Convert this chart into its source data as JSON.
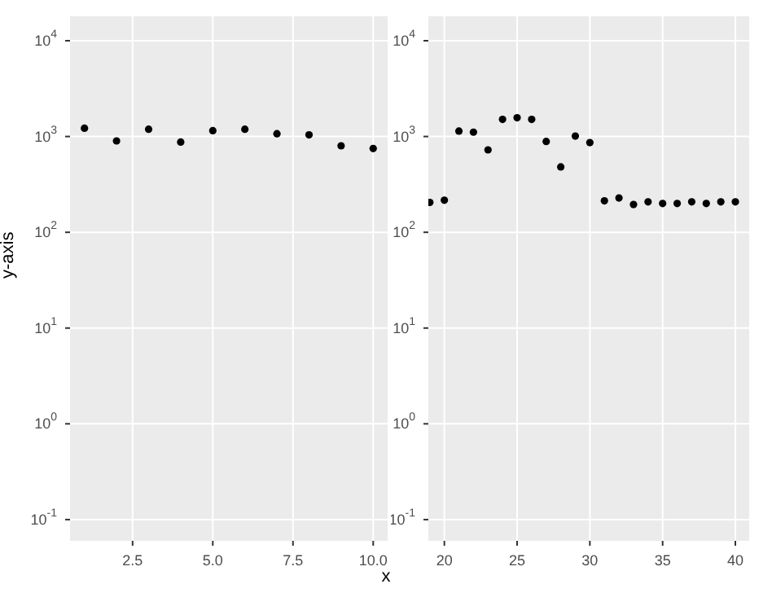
{
  "chart_data": [
    {
      "type": "scatter",
      "ylabel": "y-axis",
      "log": "y",
      "grid": true,
      "marker": "circle",
      "x": [
        1,
        2,
        3,
        4,
        5,
        6,
        7,
        8,
        9,
        10
      ],
      "series": [
        {
          "color": "#000000",
          "values": [
            1220,
            900,
            1190,
            875,
            1150,
            1190,
            1070,
            1040,
            800,
            750
          ]
        }
      ],
      "xlim": [
        0.55,
        10.45
      ],
      "xticks": [
        {
          "value": 2.5,
          "label": "2.5"
        },
        {
          "value": 5,
          "label": "5.0"
        },
        {
          "value": 7.5,
          "label": "7.5"
        },
        {
          "value": 10,
          "label": "10.0"
        }
      ],
      "ylim": [
        0.06,
        18000
      ],
      "yticks": [
        {
          "value": 0.1,
          "label": "10$^{-1}$"
        },
        {
          "value": 1,
          "label": "10$^{0}$"
        },
        {
          "value": 10,
          "label": "10$^{1}$"
        },
        {
          "value": 100,
          "label": "10$^{2}$"
        },
        {
          "value": 1000,
          "label": "10$^{3}$"
        },
        {
          "value": 10000,
          "label": "10$^{4}$"
        }
      ]
    },
    {
      "type": "scatter",
      "xlabel": "x",
      "log": "y",
      "grid": true,
      "marker": "circle",
      "x": [
        19,
        20,
        21,
        22,
        23,
        24,
        25,
        26,
        27,
        28,
        29,
        30,
        31,
        32,
        33,
        34,
        35,
        36,
        37,
        38,
        39,
        40
      ],
      "series": [
        {
          "color": "#000000",
          "values": [
            205,
            216,
            1140,
            1110,
            725,
            1510,
            1570,
            1510,
            887,
            481,
            1010,
            863,
            213,
            228,
            195,
            208,
            200,
            200,
            208,
            200,
            208,
            208
          ]
        }
      ],
      "xlim": [
        18.9,
        40.95
      ],
      "xticks": [
        20,
        25,
        30,
        35,
        40
      ],
      "ylim": [
        0.06,
        18000
      ],
      "yticks": [
        {
          "value": 0.1,
          "label": "10$^{-1}$"
        },
        {
          "value": 1,
          "label": "10$^{0}$"
        },
        {
          "value": 10,
          "label": "10$^{1}$"
        },
        {
          "value": 100,
          "label": "10$^{2}$"
        },
        {
          "value": 1000,
          "label": "10$^{3}$"
        },
        {
          "value": 10000,
          "label": "10$^{4}$"
        }
      ]
    }
  ]
}
